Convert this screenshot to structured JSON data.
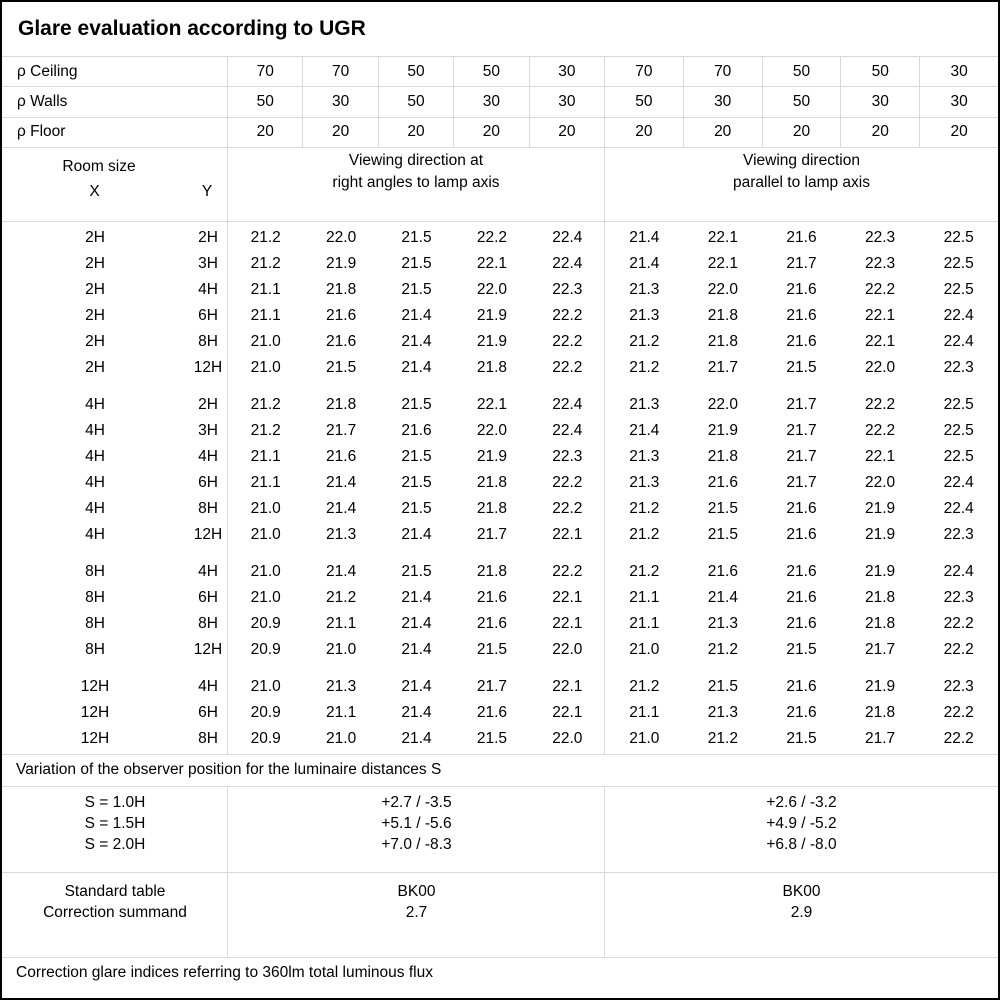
{
  "title": "Glare evaluation according to UGR",
  "colors": {
    "gridline": "#d9d9d9",
    "border": "#000000",
    "background": "#ffffff",
    "text": "#000000"
  },
  "reflectance": {
    "rows": [
      {
        "label": "ρ Ceiling",
        "values": [
          "70",
          "70",
          "50",
          "50",
          "30",
          "70",
          "70",
          "50",
          "50",
          "30"
        ]
      },
      {
        "label": "ρ Walls",
        "values": [
          "50",
          "30",
          "50",
          "30",
          "30",
          "50",
          "30",
          "50",
          "30",
          "30"
        ]
      },
      {
        "label": "ρ Floor",
        "values": [
          "20",
          "20",
          "20",
          "20",
          "20",
          "20",
          "20",
          "20",
          "20",
          "20"
        ]
      }
    ]
  },
  "header": {
    "room_size": "Room size",
    "x": "X",
    "y": "Y",
    "left_heading_line1": "Viewing direction at",
    "left_heading_line2": "right angles to lamp axis",
    "right_heading_line1": "Viewing direction",
    "right_heading_line2": "parallel to lamp axis"
  },
  "ugr_blocks": [
    {
      "rows": [
        {
          "x": "2H",
          "y": "2H",
          "right_angles": [
            "21.2",
            "22.0",
            "21.5",
            "22.2",
            "22.4"
          ],
          "parallel": [
            "21.4",
            "22.1",
            "21.6",
            "22.3",
            "22.5"
          ]
        },
        {
          "x": "2H",
          "y": "3H",
          "right_angles": [
            "21.2",
            "21.9",
            "21.5",
            "22.1",
            "22.4"
          ],
          "parallel": [
            "21.4",
            "22.1",
            "21.7",
            "22.3",
            "22.5"
          ]
        },
        {
          "x": "2H",
          "y": "4H",
          "right_angles": [
            "21.1",
            "21.8",
            "21.5",
            "22.0",
            "22.3"
          ],
          "parallel": [
            "21.3",
            "22.0",
            "21.6",
            "22.2",
            "22.5"
          ]
        },
        {
          "x": "2H",
          "y": "6H",
          "right_angles": [
            "21.1",
            "21.6",
            "21.4",
            "21.9",
            "22.2"
          ],
          "parallel": [
            "21.3",
            "21.8",
            "21.6",
            "22.1",
            "22.4"
          ]
        },
        {
          "x": "2H",
          "y": "8H",
          "right_angles": [
            "21.0",
            "21.6",
            "21.4",
            "21.9",
            "22.2"
          ],
          "parallel": [
            "21.2",
            "21.8",
            "21.6",
            "22.1",
            "22.4"
          ]
        },
        {
          "x": "2H",
          "y": "12H",
          "right_angles": [
            "21.0",
            "21.5",
            "21.4",
            "21.8",
            "22.2"
          ],
          "parallel": [
            "21.2",
            "21.7",
            "21.5",
            "22.0",
            "22.3"
          ]
        }
      ]
    },
    {
      "rows": [
        {
          "x": "4H",
          "y": "2H",
          "right_angles": [
            "21.2",
            "21.8",
            "21.5",
            "22.1",
            "22.4"
          ],
          "parallel": [
            "21.3",
            "22.0",
            "21.7",
            "22.2",
            "22.5"
          ]
        },
        {
          "x": "4H",
          "y": "3H",
          "right_angles": [
            "21.2",
            "21.7",
            "21.6",
            "22.0",
            "22.4"
          ],
          "parallel": [
            "21.4",
            "21.9",
            "21.7",
            "22.2",
            "22.5"
          ]
        },
        {
          "x": "4H",
          "y": "4H",
          "right_angles": [
            "21.1",
            "21.6",
            "21.5",
            "21.9",
            "22.3"
          ],
          "parallel": [
            "21.3",
            "21.8",
            "21.7",
            "22.1",
            "22.5"
          ]
        },
        {
          "x": "4H",
          "y": "6H",
          "right_angles": [
            "21.1",
            "21.4",
            "21.5",
            "21.8",
            "22.2"
          ],
          "parallel": [
            "21.3",
            "21.6",
            "21.7",
            "22.0",
            "22.4"
          ]
        },
        {
          "x": "4H",
          "y": "8H",
          "right_angles": [
            "21.0",
            "21.4",
            "21.5",
            "21.8",
            "22.2"
          ],
          "parallel": [
            "21.2",
            "21.5",
            "21.6",
            "21.9",
            "22.4"
          ]
        },
        {
          "x": "4H",
          "y": "12H",
          "right_angles": [
            "21.0",
            "21.3",
            "21.4",
            "21.7",
            "22.1"
          ],
          "parallel": [
            "21.2",
            "21.5",
            "21.6",
            "21.9",
            "22.3"
          ]
        }
      ]
    },
    {
      "rows": [
        {
          "x": "8H",
          "y": "4H",
          "right_angles": [
            "21.0",
            "21.4",
            "21.5",
            "21.8",
            "22.2"
          ],
          "parallel": [
            "21.2",
            "21.6",
            "21.6",
            "21.9",
            "22.4"
          ]
        },
        {
          "x": "8H",
          "y": "6H",
          "right_angles": [
            "21.0",
            "21.2",
            "21.4",
            "21.6",
            "22.1"
          ],
          "parallel": [
            "21.1",
            "21.4",
            "21.6",
            "21.8",
            "22.3"
          ]
        },
        {
          "x": "8H",
          "y": "8H",
          "right_angles": [
            "20.9",
            "21.1",
            "21.4",
            "21.6",
            "22.1"
          ],
          "parallel": [
            "21.1",
            "21.3",
            "21.6",
            "21.8",
            "22.2"
          ]
        },
        {
          "x": "8H",
          "y": "12H",
          "right_angles": [
            "20.9",
            "21.0",
            "21.4",
            "21.5",
            "22.0"
          ],
          "parallel": [
            "21.0",
            "21.2",
            "21.5",
            "21.7",
            "22.2"
          ]
        }
      ]
    },
    {
      "rows": [
        {
          "x": "12H",
          "y": "4H",
          "right_angles": [
            "21.0",
            "21.3",
            "21.4",
            "21.7",
            "22.1"
          ],
          "parallel": [
            "21.2",
            "21.5",
            "21.6",
            "21.9",
            "22.3"
          ]
        },
        {
          "x": "12H",
          "y": "6H",
          "right_angles": [
            "20.9",
            "21.1",
            "21.4",
            "21.6",
            "22.1"
          ],
          "parallel": [
            "21.1",
            "21.3",
            "21.6",
            "21.8",
            "22.2"
          ]
        },
        {
          "x": "12H",
          "y": "8H",
          "right_angles": [
            "20.9",
            "21.0",
            "21.4",
            "21.5",
            "22.0"
          ],
          "parallel": [
            "21.0",
            "21.2",
            "21.5",
            "21.7",
            "22.2"
          ]
        }
      ]
    }
  ],
  "variation": {
    "title": "Variation of the observer position for the luminaire distances S",
    "rows": [
      {
        "label": "S = 1.0H",
        "right_angles": "+2.7 / -3.5",
        "parallel": "+2.6 / -3.2"
      },
      {
        "label": "S = 1.5H",
        "right_angles": "+5.1 / -5.6",
        "parallel": "+4.9 / -5.2"
      },
      {
        "label": "S = 2.0H",
        "right_angles": "+7.0 / -8.3",
        "parallel": "+6.8 / -8.0"
      }
    ]
  },
  "standard": {
    "rows": [
      {
        "label": "Standard table",
        "right_angles": "BK00",
        "parallel": "BK00"
      },
      {
        "label": "Correction summand",
        "right_angles": "2.7",
        "parallel": "2.9"
      }
    ]
  },
  "footnote": "Correction glare indices referring to 360lm total luminous flux"
}
